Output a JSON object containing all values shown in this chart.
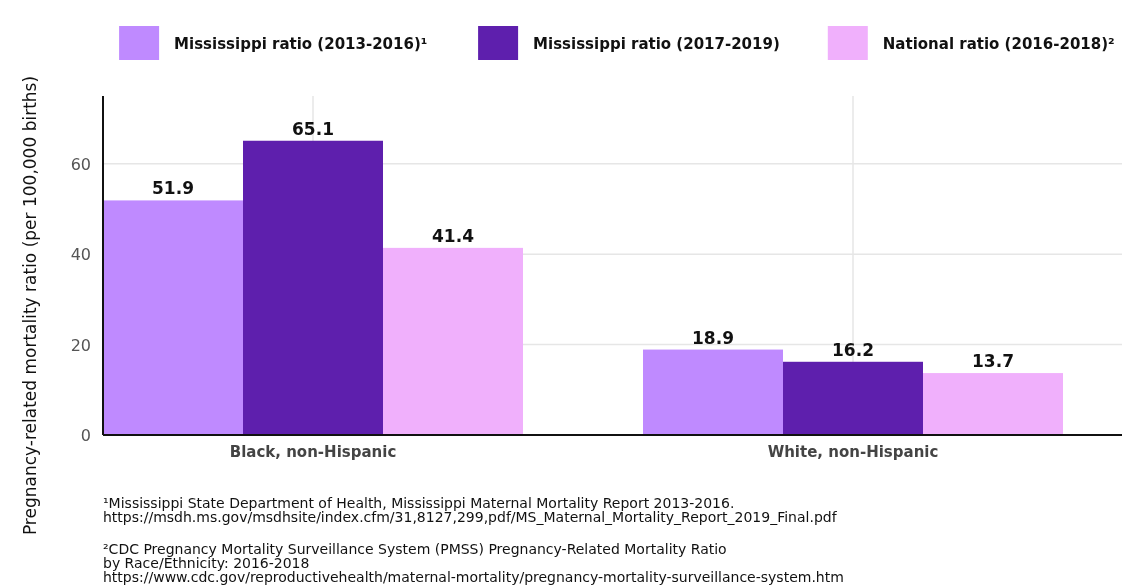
{
  "chart_data": {
    "type": "bar",
    "ylabel": "Pregnancy-related mortality ratio (per 100,000 births)",
    "categories": [
      "Black, non-Hispanic",
      "White, non-Hispanic"
    ],
    "series": [
      {
        "name": "Mississippi ratio (2013-2016)¹",
        "color": "#bf8aff",
        "values": [
          51.9,
          18.9
        ]
      },
      {
        "name": "Mississippi ratio (2017-2019)",
        "color": "#5e1fad",
        "values": [
          65.1,
          16.2
        ]
      },
      {
        "name": "National ratio (2016-2018)²",
        "color": "#f0b0fc",
        "values": [
          41.4,
          13.7
        ]
      }
    ],
    "ylim": [
      0,
      75
    ],
    "yticks": [
      0,
      20,
      40,
      60
    ],
    "grid": true,
    "legend": "top",
    "data_labels": true,
    "annotations": [
      "¹Mississippi State Department of Health, Mississippi Maternal Mortality Report 2013-2016.\nhttps://msdh.ms.gov/msdhsite/index.cfm/31,8127,299,pdf/MS_Maternal_Mortality_Report_2019_Final.pdf",
      "²CDC Pregnancy Mortality Surveillance System (PMSS) Pregnancy-Related Mortality Ratio\nby Race/Ethnicity: 2016-2018\nhttps://www.cdc.gov/reproductivehealth/maternal-mortality/pregnancy-mortality-surveillance-system.htm"
    ]
  }
}
